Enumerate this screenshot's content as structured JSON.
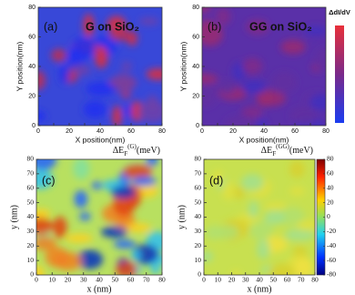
{
  "chart_data": [
    {
      "type": "heatmap",
      "panel": "(a)",
      "label": "G on SiO₂",
      "xlabel": "X position(nm)",
      "ylabel": "Y position(nm)",
      "xlim": [
        0,
        80
      ],
      "ylim": [
        0,
        80
      ],
      "xticks": [
        0,
        10,
        20,
        30,
        40,
        50,
        60,
        70,
        80
      ],
      "yticks": [
        0,
        20,
        40,
        60,
        80
      ]
    },
    {
      "type": "heatmap",
      "panel": "(b)",
      "label": "GG on SiO₂",
      "xlabel": "X position(nm)",
      "ylabel": "Y position(nm)",
      "xlim": [
        0,
        80
      ],
      "ylim": [
        0,
        80
      ],
      "xticks": [
        0,
        10,
        20,
        30,
        40,
        50,
        60,
        70,
        80
      ],
      "yticks": [
        0,
        20,
        40,
        60,
        80
      ],
      "colorbar_label": "ΔdI/dV"
    },
    {
      "type": "heatmap",
      "panel": "(c)",
      "title": "ΔE",
      "title_sub": "F",
      "title_sup": "(G)",
      "title_unit": "(meV)",
      "xlabel": "x (nm)",
      "ylabel": "y (nm)",
      "xlim": [
        0,
        80
      ],
      "ylim": [
        0,
        80
      ],
      "xticks": [
        0,
        10,
        20,
        30,
        40,
        50,
        60,
        70,
        80
      ],
      "yticks": [
        0,
        10,
        20,
        30,
        40,
        50,
        60,
        70,
        80
      ]
    },
    {
      "type": "heatmap",
      "panel": "(d)",
      "title": "ΔE",
      "title_sub": "F",
      "title_sup": "(GG)",
      "title_unit": "(meV)",
      "xlabel": "x (nm)",
      "ylabel": "y (nm)",
      "xlim": [
        0,
        80
      ],
      "ylim": [
        0,
        80
      ],
      "xticks": [
        0,
        10,
        20,
        30,
        40,
        50,
        60,
        70,
        80
      ],
      "yticks": [
        0,
        10,
        20,
        30,
        40,
        50,
        60,
        70,
        80
      ],
      "colorbar_lim": [
        -80,
        80
      ],
      "colorbar_ticks": [
        -80,
        -60,
        -40,
        -20,
        0,
        20,
        40,
        60,
        80
      ]
    }
  ]
}
